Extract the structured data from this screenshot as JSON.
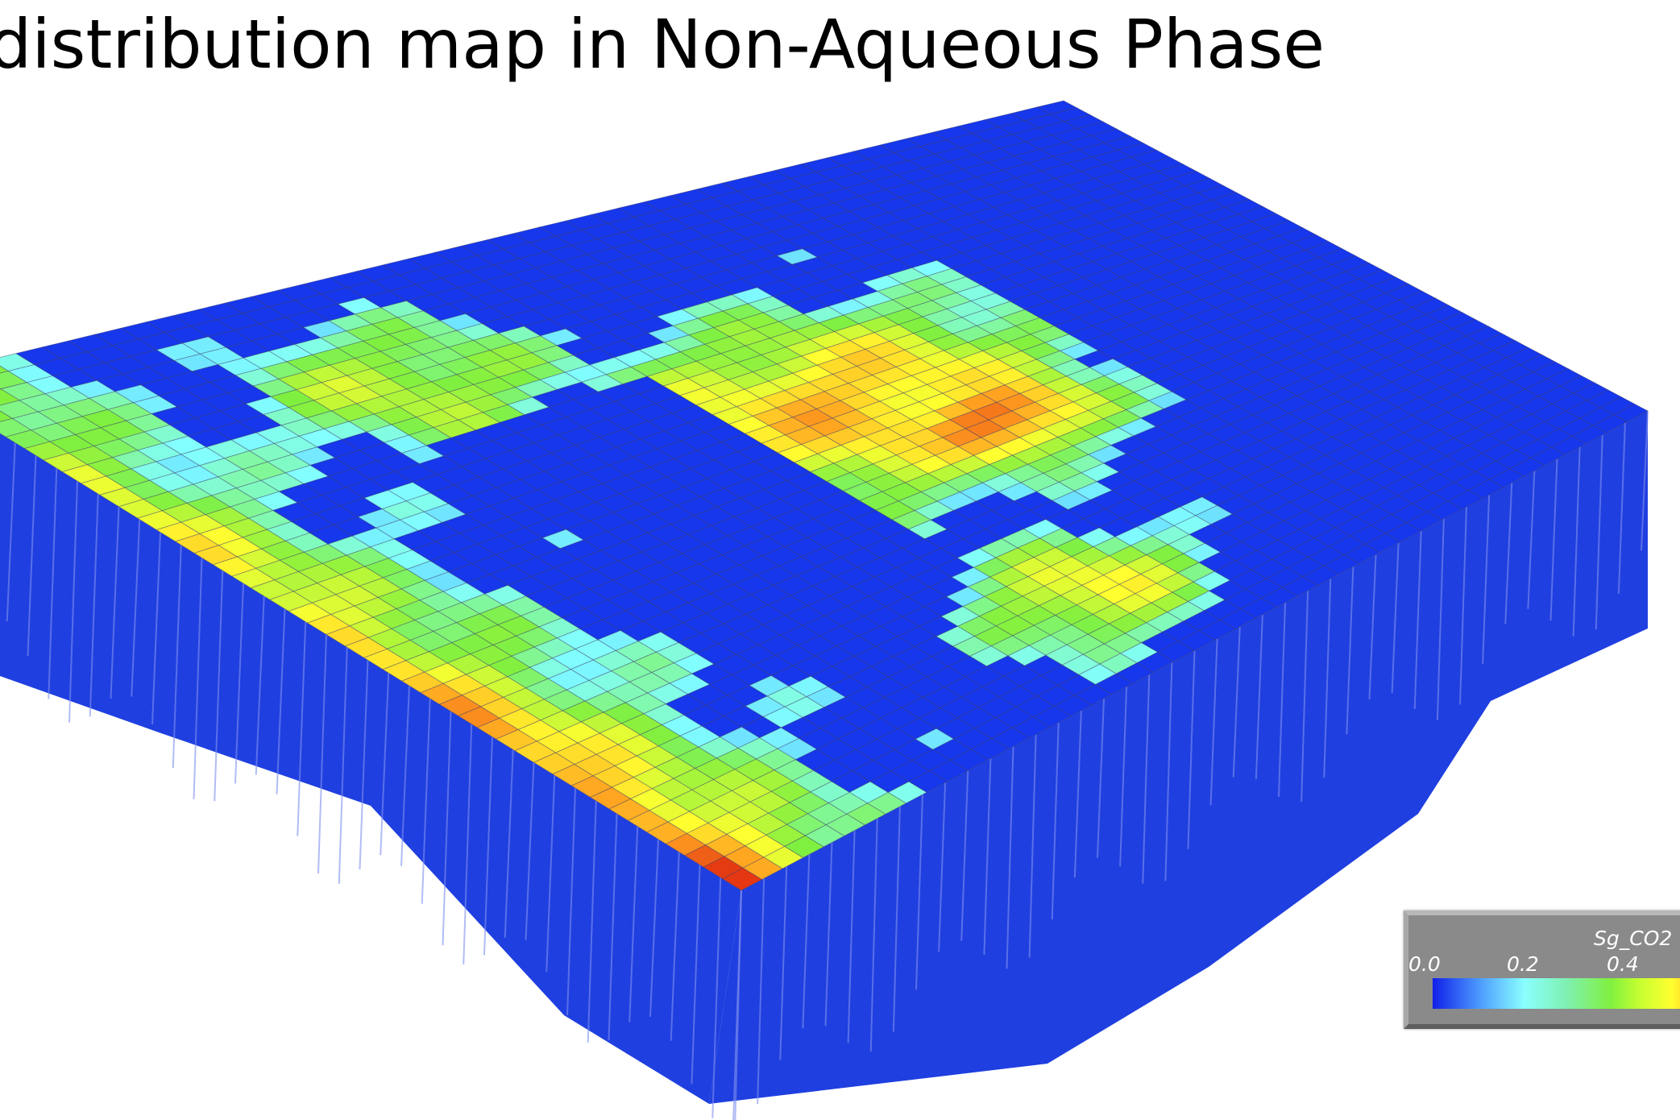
{
  "title": "distribution map in Non-Aqueous Phase",
  "legend": {
    "title": "Sg_CO2",
    "ticks": [
      "0.0",
      "0.2",
      "0.4"
    ],
    "colormap": [
      "#1020e8",
      "#8affff",
      "#80f040",
      "#ffff30",
      "#ffa020",
      "#e02010"
    ]
  },
  "colors": {
    "wall": "#1f3fe0",
    "wall_line": "#8090f0",
    "background": "#ffffff"
  }
}
